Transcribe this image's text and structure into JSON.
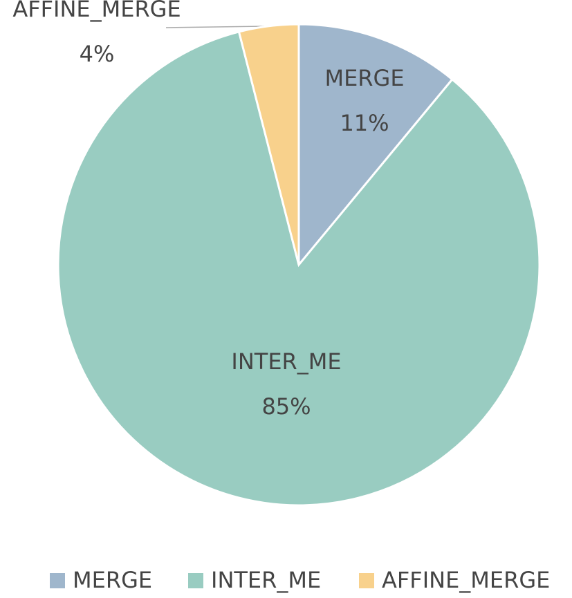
{
  "chart_data": {
    "type": "pie",
    "categories": [
      "MERGE",
      "INTER_ME",
      "AFFINE_MERGE"
    ],
    "values": [
      11,
      85,
      4
    ],
    "value_labels": [
      "11%",
      "85%",
      "4%"
    ],
    "colors": [
      "#9fb6cc",
      "#99ccc1",
      "#f8d18c"
    ],
    "legend": "bottom"
  }
}
